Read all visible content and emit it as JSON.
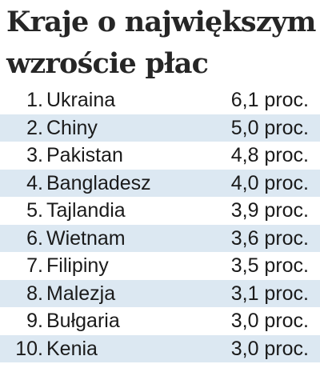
{
  "title": {
    "line1": "Kraje o największym",
    "line2": "wzroście płac"
  },
  "rows": [
    {
      "rank": "1.",
      "country": "Ukraina",
      "value": "6,1 proc."
    },
    {
      "rank": "2.",
      "country": "Chiny",
      "value": "5,0 proc."
    },
    {
      "rank": "3.",
      "country": "Pakistan",
      "value": "4,8 proc."
    },
    {
      "rank": "4.",
      "country": "Bangladesz",
      "value": "4,0 proc."
    },
    {
      "rank": "5.",
      "country": "Tajlandia",
      "value": "3,9 proc."
    },
    {
      "rank": "6.",
      "country": "Wietnam",
      "value": "3,6 proc."
    },
    {
      "rank": "7.",
      "country": "Filipiny",
      "value": "3,5 proc."
    },
    {
      "rank": "8.",
      "country": "Malezja",
      "value": "3,1 proc."
    },
    {
      "rank": "9.",
      "country": "Bułgaria",
      "value": "3,0 proc."
    },
    {
      "rank": "10.",
      "country": "Kenia",
      "value": "3,0 proc."
    }
  ],
  "colors": {
    "stripe": "#dce8f2",
    "text": "#1a1a1a",
    "title": "#262626"
  }
}
